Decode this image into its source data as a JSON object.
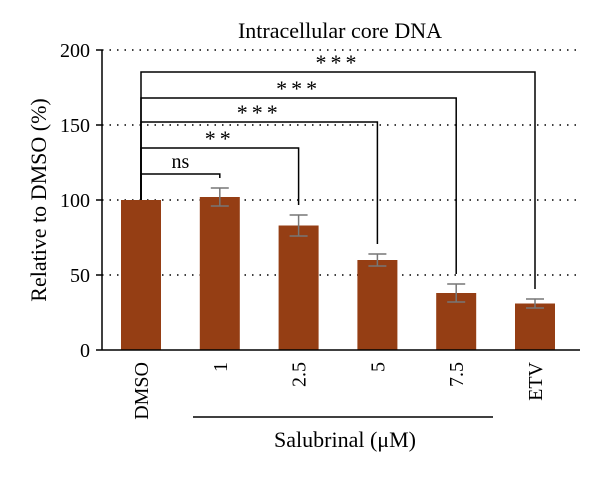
{
  "chart_data": {
    "type": "bar",
    "title": "Intracellular core DNA",
    "ylabel": "Relative to DMSO (%)",
    "xlabel": "Salubrinal (μM)",
    "categories": [
      "DMSO",
      "1",
      "2.5",
      "5",
      "7.5",
      "ETV"
    ],
    "values": [
      100,
      102,
      83,
      60,
      38,
      31
    ],
    "errors": [
      0,
      6,
      7,
      4,
      6,
      3
    ],
    "ylim": [
      0,
      200
    ],
    "yticks": [
      "0",
      "50",
      "100",
      "150",
      "200"
    ],
    "ytick_values": [
      0,
      50,
      100,
      150,
      200
    ],
    "grid": "dotted horizontal",
    "bar_color": "#953e14",
    "error_color": "#777777",
    "significance": [
      {
        "from": "DMSO",
        "to": "1",
        "label": "ns"
      },
      {
        "from": "DMSO",
        "to": "2.5",
        "label": "**"
      },
      {
        "from": "DMSO",
        "to": "5",
        "label": "***"
      },
      {
        "from": "DMSO",
        "to": "7.5",
        "label": "***"
      },
      {
        "from": "DMSO",
        "to": "ETV",
        "label": "***"
      }
    ]
  }
}
